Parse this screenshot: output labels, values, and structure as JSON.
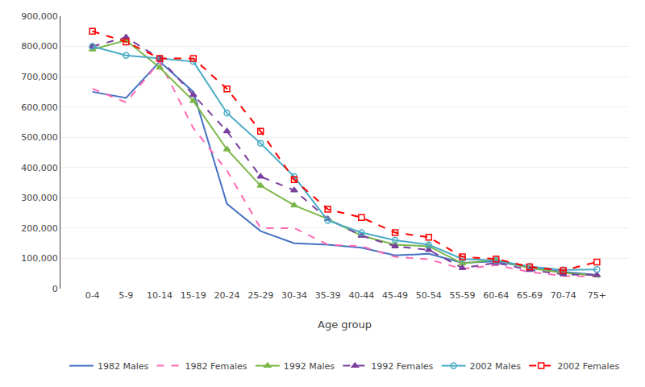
{
  "chart_data": {
    "type": "line",
    "xlabel": "Age group",
    "categories": [
      "0-4",
      "5-9",
      "10-14",
      "15-19",
      "20-24",
      "25-29",
      "30-34",
      "35-39",
      "40-44",
      "45-49",
      "50-54",
      "55-59",
      "60-64",
      "65-69",
      "70-74",
      "75+"
    ],
    "series": [
      {
        "name": "1982 Males",
        "color": "#4472C4",
        "line_style": "solid",
        "marker": "none",
        "values": [
          650000,
          630000,
          750000,
          650000,
          280000,
          190000,
          150000,
          145000,
          135000,
          110000,
          115000,
          85000,
          90000,
          70000,
          55000,
          45000
        ]
      },
      {
        "name": "1982 Females",
        "color": "#FF69B4",
        "line_style": "dashed",
        "marker": "none",
        "values": [
          660000,
          615000,
          750000,
          530000,
          390000,
          200000,
          200000,
          145000,
          140000,
          105000,
          97000,
          65000,
          78000,
          55000,
          42000,
          40000
        ]
      },
      {
        "name": "1992 Males",
        "color": "#7AB648",
        "line_style": "solid",
        "marker": "triangle-up",
        "values": [
          790000,
          820000,
          730000,
          620000,
          460000,
          340000,
          275000,
          230000,
          175000,
          145000,
          140000,
          83000,
          95000,
          68000,
          52000,
          43000
        ]
      },
      {
        "name": "1992 Females",
        "color": "#7B3F9E",
        "line_style": "dashed",
        "marker": "triangle-up",
        "values": [
          800000,
          830000,
          760000,
          640000,
          520000,
          370000,
          325000,
          230000,
          175000,
          140000,
          128000,
          68000,
          85000,
          62000,
          47000,
          45000
        ]
      },
      {
        "name": "2002 Males",
        "color": "#4BACC6",
        "line_style": "solid",
        "marker": "circle-open",
        "values": [
          800000,
          770000,
          760000,
          750000,
          580000,
          480000,
          370000,
          225000,
          185000,
          160000,
          145000,
          98000,
          93000,
          73000,
          62000,
          63000
        ]
      },
      {
        "name": "2002 Females",
        "color": "#FF0000",
        "line_style": "dashed",
        "marker": "square-open",
        "values": [
          850000,
          815000,
          760000,
          760000,
          660000,
          520000,
          360000,
          262000,
          235000,
          185000,
          170000,
          105000,
          98000,
          72000,
          60000,
          88000
        ]
      }
    ],
    "ylim": [
      0,
      900000
    ],
    "yticks": [
      0,
      {
        "value": 100000,
        "label": "100,000"
      },
      {
        "value": 200000,
        "label": "200,000"
      },
      {
        "value": 300000,
        "label": "300,000"
      },
      {
        "value": 400000,
        "label": "400,000"
      },
      {
        "value": 500000,
        "label": "500,000"
      },
      {
        "value": 600000,
        "label": "600,000"
      },
      {
        "value": 700000,
        "label": "700,000"
      },
      {
        "value": 800000,
        "label": "800,000"
      },
      {
        "value": 900000,
        "label": "900,000"
      }
    ],
    "grid": true,
    "legend": "bottom"
  }
}
